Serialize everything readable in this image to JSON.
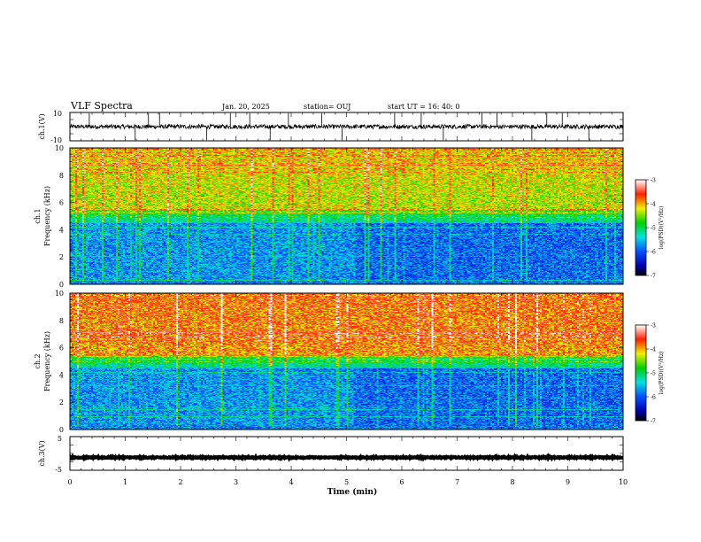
{
  "header": {
    "title": "VLF Spectra",
    "date": "Jan. 20, 2025",
    "station": "station= OUJ",
    "start": "start  UT  =   16: 40: 0"
  },
  "chart_data": [
    {
      "type": "line",
      "name": "ch1-waveform",
      "ylabel": "ch.1(V)",
      "ylim": [
        -10,
        10
      ],
      "yticks": [
        "10",
        "-10"
      ],
      "xlim": [
        0,
        10
      ],
      "baseline": 0,
      "noise_amplitude": 1.5,
      "spike_times": [
        0.35,
        1.18,
        1.42,
        1.62,
        2.47,
        2.9,
        3.25,
        3.62,
        3.95,
        4.55,
        4.92,
        5.87,
        6.35,
        6.75,
        7.45,
        7.72,
        8.35,
        8.62,
        8.9,
        9.38
      ]
    },
    {
      "type": "heatmap",
      "name": "ch1-spectrogram",
      "ylabel_top": "ch.1",
      "ylabel": "Frequency  (kHz)",
      "ylim": [
        0,
        10
      ],
      "yticks": [
        "0",
        "2",
        "4",
        "6",
        "8",
        "10"
      ],
      "xlim": [
        0,
        10
      ],
      "colorbar": {
        "ticks": [
          "-3",
          "-4",
          "-5",
          "-6",
          "-7"
        ],
        "label": "log(PSD)(V²/Hz)",
        "range": [
          -7,
          -3
        ]
      }
    },
    {
      "type": "heatmap",
      "name": "ch2-spectrogram",
      "ylabel_top": "ch.2",
      "ylabel": "Frequency  (kHz)",
      "ylim": [
        0,
        10
      ],
      "yticks": [
        "0",
        "2",
        "4",
        "6",
        "8",
        "10"
      ],
      "xlim": [
        0,
        10
      ],
      "colorbar": {
        "ticks": [
          "-3",
          "-4",
          "-5",
          "-6",
          "-7"
        ],
        "label": "log(PSD)(V²/Hz)",
        "range": [
          -7,
          -3
        ]
      }
    },
    {
      "type": "line",
      "name": "ch3-waveform",
      "ylabel": "ch.3(V)",
      "ylim": [
        -5,
        5
      ],
      "yticks": [
        "5",
        "-5"
      ],
      "xlim": [
        0,
        10
      ],
      "baseline": -1.2,
      "noise_amplitude": 0.15,
      "spike_times": []
    }
  ],
  "xaxis": {
    "label": "Time  (min)",
    "ticks": [
      "0",
      "1",
      "2",
      "3",
      "4",
      "5",
      "6",
      "7",
      "8",
      "9",
      "10"
    ]
  },
  "colors": {
    "ink": "#000000",
    "background": "#ffffff"
  }
}
